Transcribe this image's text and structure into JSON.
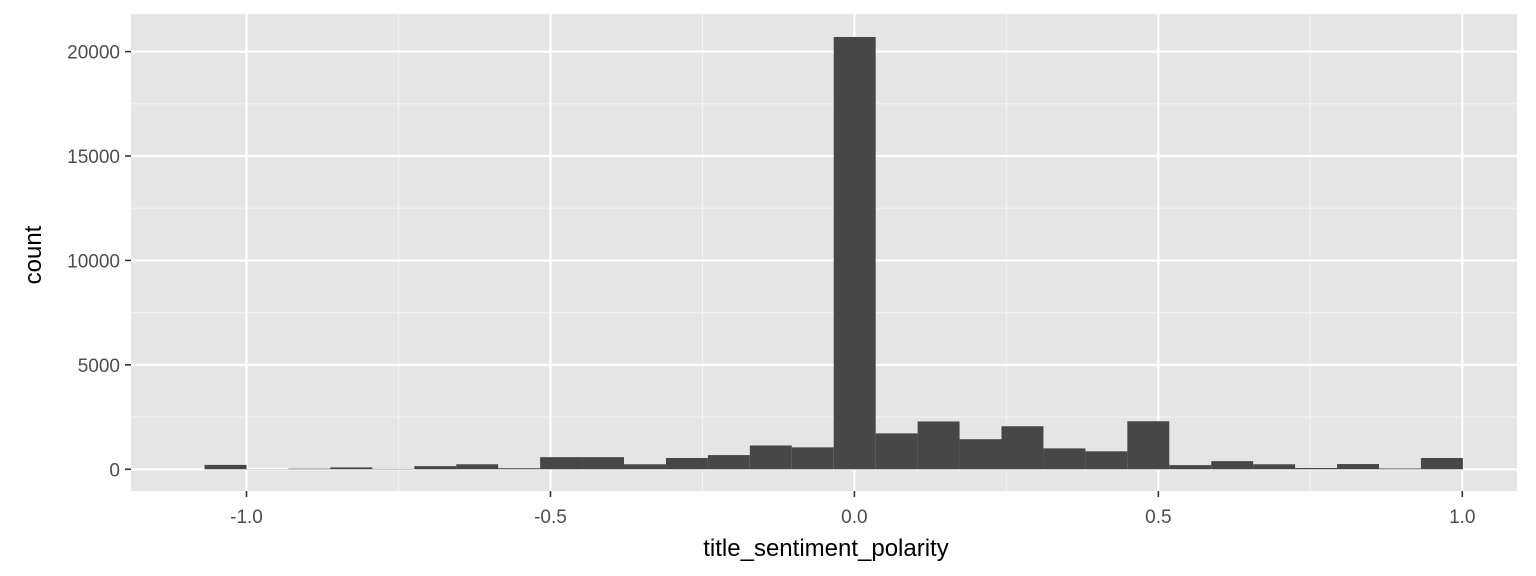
{
  "chart_data": {
    "type": "bar",
    "subtype": "histogram",
    "title": "",
    "xlabel": "title_sentiment_polarity",
    "ylabel": "count",
    "x_ticks": [
      -1.0,
      -0.5,
      0.0,
      0.5,
      1.0
    ],
    "x_tick_labels": [
      "-1.0",
      "-0.5",
      "0.0",
      "0.5",
      "1.0"
    ],
    "y_ticks": [
      0,
      5000,
      10000,
      15000,
      20000
    ],
    "y_tick_labels": [
      "0",
      "5000",
      "10000",
      "15000",
      "20000"
    ],
    "xlim": [
      -1.19,
      1.09
    ],
    "ylim": [
      -1040,
      21800
    ],
    "grid": true,
    "bin_width": 0.069,
    "bins": [
      {
        "x_min": -1.069,
        "x_max": -1.0,
        "count": 210
      },
      {
        "x_min": -1.0,
        "x_max": -0.931,
        "count": 10
      },
      {
        "x_min": -0.931,
        "x_max": -0.862,
        "count": 30
      },
      {
        "x_min": -0.862,
        "x_max": -0.793,
        "count": 90
      },
      {
        "x_min": -0.793,
        "x_max": -0.724,
        "count": 20
      },
      {
        "x_min": -0.724,
        "x_max": -0.655,
        "count": 150
      },
      {
        "x_min": -0.655,
        "x_max": -0.586,
        "count": 240
      },
      {
        "x_min": -0.586,
        "x_max": -0.517,
        "count": 50
      },
      {
        "x_min": -0.517,
        "x_max": -0.448,
        "count": 580
      },
      {
        "x_min": -0.448,
        "x_max": -0.379,
        "count": 580
      },
      {
        "x_min": -0.379,
        "x_max": -0.31,
        "count": 240
      },
      {
        "x_min": -0.31,
        "x_max": -0.241,
        "count": 540
      },
      {
        "x_min": -0.241,
        "x_max": -0.172,
        "count": 680
      },
      {
        "x_min": -0.172,
        "x_max": -0.103,
        "count": 1140
      },
      {
        "x_min": -0.103,
        "x_max": -0.034,
        "count": 1050
      },
      {
        "x_min": -0.034,
        "x_max": 0.035,
        "count": 20700
      },
      {
        "x_min": 0.035,
        "x_max": 0.104,
        "count": 1720
      },
      {
        "x_min": 0.104,
        "x_max": 0.173,
        "count": 2290
      },
      {
        "x_min": 0.173,
        "x_max": 0.242,
        "count": 1440
      },
      {
        "x_min": 0.242,
        "x_max": 0.311,
        "count": 2060
      },
      {
        "x_min": 0.311,
        "x_max": 0.38,
        "count": 1000
      },
      {
        "x_min": 0.38,
        "x_max": 0.449,
        "count": 860
      },
      {
        "x_min": 0.449,
        "x_max": 0.518,
        "count": 2300
      },
      {
        "x_min": 0.518,
        "x_max": 0.587,
        "count": 200
      },
      {
        "x_min": 0.587,
        "x_max": 0.656,
        "count": 390
      },
      {
        "x_min": 0.656,
        "x_max": 0.725,
        "count": 240
      },
      {
        "x_min": 0.725,
        "x_max": 0.794,
        "count": 60
      },
      {
        "x_min": 0.794,
        "x_max": 0.863,
        "count": 250
      },
      {
        "x_min": 0.863,
        "x_max": 0.932,
        "count": 40
      },
      {
        "x_min": 0.932,
        "x_max": 1.001,
        "count": 540
      }
    ]
  },
  "colors": {
    "panel_background": "#e5e5e5",
    "grid_major": "#ffffff",
    "grid_minor": "#f2f2f2",
    "bar_fill": "#474747",
    "tick_text": "#4d4d4d",
    "axis_title": "#000000"
  }
}
